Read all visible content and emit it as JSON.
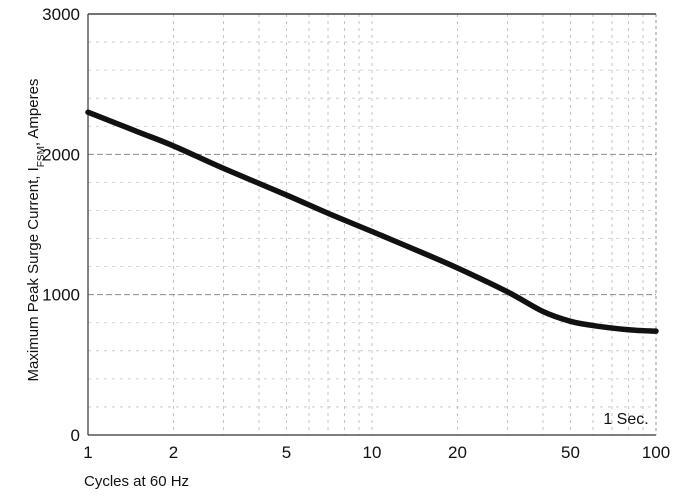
{
  "chart_data": {
    "type": "line",
    "title": "",
    "xlabel": "Cycles at 60 Hz",
    "ylabel_main": "Maximum Peak Surge Current, I",
    "ylabel_sub": "FSM",
    "ylabel_tail": ", Amperes",
    "x_scale": "log",
    "xlim": [
      1,
      100
    ],
    "ylim": [
      0,
      3000
    ],
    "x_ticks": [
      1,
      2,
      5,
      10,
      20,
      50,
      100
    ],
    "x_tick_labels": [
      "1",
      "2",
      "5",
      "10",
      "20",
      "50",
      "100"
    ],
    "y_ticks": [
      0,
      1000,
      2000,
      3000
    ],
    "y_tick_labels": [
      "0",
      "1000",
      "2000",
      "3000"
    ],
    "grid": true,
    "annotation": "1 Sec.",
    "series": [
      {
        "x": [
          1,
          1.5,
          2,
          3,
          5,
          7,
          10,
          15,
          20,
          30,
          40,
          50,
          60,
          80,
          100
        ],
        "y": [
          2300,
          2160,
          2060,
          1900,
          1710,
          1580,
          1450,
          1300,
          1190,
          1020,
          880,
          810,
          780,
          750,
          740
        ]
      }
    ]
  }
}
